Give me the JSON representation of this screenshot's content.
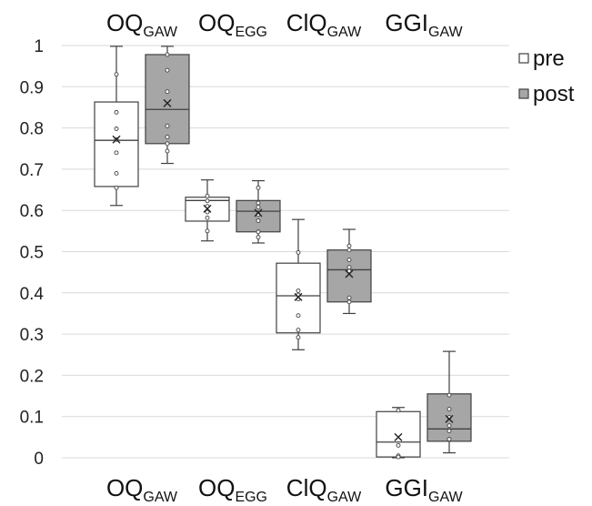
{
  "chart_data": {
    "type": "box",
    "categories": [
      {
        "main": "OQ",
        "sub": "GAW"
      },
      {
        "main": "OQ",
        "sub": "EGG"
      },
      {
        "main": "ClQ",
        "sub": "GAW"
      },
      {
        "main": "GGI",
        "sub": "GAW"
      }
    ],
    "ylim": [
      0,
      1
    ],
    "yticks": [
      "0",
      "0.1",
      "0.2",
      "0.3",
      "0.4",
      "0.5",
      "0.6",
      "0.7",
      "0.8",
      "0.9",
      "1"
    ],
    "grid": true,
    "legend_position": "top-right",
    "series": [
      {
        "name": "pre",
        "color": "#ffffff",
        "boxes": [
          {
            "min": 0.612,
            "q1": 0.658,
            "median": 0.77,
            "q3": 0.863,
            "max": 0.998,
            "mean": 0.772,
            "points": [
              0.93,
              0.838,
              0.798,
              0.772,
              0.74,
              0.69,
              0.655
            ]
          },
          {
            "min": 0.526,
            "q1": 0.574,
            "median": 0.624,
            "q3": 0.632,
            "max": 0.674,
            "mean": 0.604,
            "points": [
              0.635,
              0.623,
              0.61,
              0.596,
              0.582,
              0.55
            ]
          },
          {
            "min": 0.262,
            "q1": 0.303,
            "median": 0.393,
            "q3": 0.472,
            "max": 0.578,
            "mean": 0.39,
            "points": [
              0.498,
              0.405,
              0.395,
              0.385,
              0.345,
              0.31,
              0.292
            ]
          },
          {
            "min": 0.0,
            "q1": 0.002,
            "median": 0.038,
            "q3": 0.112,
            "max": 0.122,
            "mean": 0.05,
            "points": [
              0.115,
              0.03,
              0.005,
              0.002
            ]
          }
        ]
      },
      {
        "name": "post",
        "color": "#a6a6a6",
        "boxes": [
          {
            "min": 0.714,
            "q1": 0.762,
            "median": 0.845,
            "q3": 0.978,
            "max": 0.998,
            "mean": 0.86,
            "points": [
              0.978,
              0.94,
              0.888,
              0.805,
              0.778,
              0.762,
              0.744
            ]
          },
          {
            "min": 0.521,
            "q1": 0.548,
            "median": 0.598,
            "q3": 0.624,
            "max": 0.672,
            "mean": 0.594,
            "points": [
              0.655,
              0.618,
              0.608,
              0.59,
              0.575,
              0.548,
              0.535
            ]
          },
          {
            "min": 0.35,
            "q1": 0.378,
            "median": 0.456,
            "q3": 0.504,
            "max": 0.554,
            "mean": 0.446,
            "points": [
              0.514,
              0.504,
              0.48,
              0.462,
              0.453,
              0.388,
              0.378
            ]
          },
          {
            "min": 0.012,
            "q1": 0.04,
            "median": 0.07,
            "q3": 0.155,
            "max": 0.258,
            "mean": 0.094,
            "points": [
              0.152,
              0.118,
              0.098,
              0.078,
              0.065,
              0.045
            ]
          }
        ]
      }
    ]
  }
}
